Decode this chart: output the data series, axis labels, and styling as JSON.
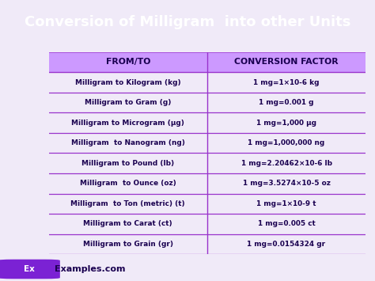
{
  "title": "Conversion of Milligram  into other Units",
  "title_bg": "#7b22d4",
  "title_color": "#ffffff",
  "header": [
    "FROM/TO",
    "CONVERSION FACTOR"
  ],
  "header_bg": "#cc99ff",
  "header_color": "#1a0050",
  "rows": [
    [
      "Milligram to Kilogram (kg)",
      "1 mg=1×10-6 kg"
    ],
    [
      "Milligram to Gram (g)",
      "1 mg=0.001 g"
    ],
    [
      "Milligram to Microgram (µg)",
      "1 mg=1,000 µg"
    ],
    [
      "Milligram  to Nanogram (ng)",
      "1 mg=1,000,000 ng"
    ],
    [
      "Milligram to Pound (lb)",
      "1 mg=2.20462×10-6 lb"
    ],
    [
      "Milligram  to Ounce (oz)",
      "1 mg=3.5274×10-5 oz"
    ],
    [
      "Milligram  to Ton (metric) (t)",
      "1 mg=1×10-9 t"
    ],
    [
      "Milligram to Carat (ct)",
      "1 mg=0.005 ct"
    ],
    [
      "Milligram to Grain (gr)",
      "1 mg=0.0154324 gr"
    ]
  ],
  "border_color": "#9933cc",
  "text_color": "#1a0050",
  "footer_text": "Examples.com",
  "footer_bg": "#7b22d4",
  "bg_color": "#f0eaf8",
  "col_split": 0.5,
  "title_fontsize": 13.0,
  "header_fontsize": 7.8,
  "row_fontsize": 6.4
}
